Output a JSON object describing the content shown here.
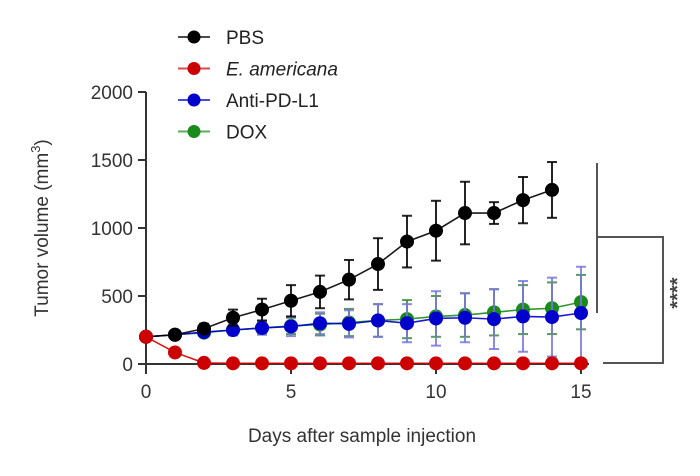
{
  "chart_data": {
    "type": "line",
    "title": "",
    "xlabel": "Days after sample injection",
    "ylabel": "Tumor volume (mm3)",
    "ylabel_parts": {
      "main": "Tumor volume (mm",
      "sup": "3",
      "close": ")"
    },
    "xlim": [
      0,
      15
    ],
    "ylim": [
      0,
      2000
    ],
    "xticks": [
      0,
      5,
      10,
      15
    ],
    "yticks": [
      0,
      500,
      1000,
      1500,
      2000
    ],
    "grid": false,
    "legend_position": "top-left",
    "x": [
      0,
      1,
      2,
      3,
      4,
      5,
      6,
      7,
      8,
      9,
      10,
      11,
      12,
      13,
      14,
      15
    ],
    "series": [
      {
        "name": "PBS",
        "italic_part": "",
        "color": "#000000",
        "x": [
          0,
          1,
          2,
          3,
          4,
          5,
          6,
          7,
          8,
          9,
          10,
          11,
          12,
          13,
          14
        ],
        "values": [
          200,
          215,
          260,
          340,
          400,
          465,
          530,
          620,
          735,
          900,
          980,
          1110,
          1110,
          1205,
          1280
        ],
        "errors": [
          10,
          15,
          35,
          60,
          80,
          115,
          120,
          145,
          190,
          190,
          220,
          230,
          80,
          170,
          205
        ]
      },
      {
        "name": "E. americana",
        "italic_part": "E. americana",
        "color": "#cc0000",
        "x": [
          0,
          1,
          2,
          3,
          4,
          5,
          6,
          7,
          8,
          9,
          10,
          11,
          12,
          13,
          14,
          15
        ],
        "values": [
          200,
          85,
          8,
          5,
          5,
          5,
          5,
          5,
          5,
          5,
          5,
          5,
          5,
          5,
          5,
          5
        ],
        "errors": [
          0,
          10,
          5,
          3,
          3,
          3,
          3,
          3,
          3,
          3,
          3,
          3,
          3,
          3,
          3,
          3
        ]
      },
      {
        "name": "Anti-PD-L1",
        "italic_part": "",
        "color": "#0000cc",
        "x": [
          0,
          1,
          2,
          3,
          4,
          5,
          6,
          7,
          8,
          9,
          10,
          11,
          12,
          13,
          14,
          15
        ],
        "values": [
          200,
          215,
          235,
          250,
          265,
          275,
          300,
          295,
          320,
          300,
          335,
          340,
          330,
          350,
          345,
          375
        ],
        "errors": [
          10,
          20,
          30,
          40,
          50,
          70,
          80,
          100,
          120,
          140,
          200,
          180,
          220,
          260,
          290,
          340
        ]
      },
      {
        "name": "DOX",
        "italic_part": "",
        "color": "#1a8a1a",
        "x": [
          0,
          1,
          2,
          3,
          4,
          5,
          6,
          7,
          8,
          9,
          10,
          11,
          12,
          13,
          14,
          15
        ],
        "values": [
          200,
          215,
          230,
          250,
          265,
          280,
          290,
          305,
          320,
          330,
          350,
          360,
          380,
          400,
          410,
          455
        ],
        "errors": [
          10,
          15,
          25,
          35,
          45,
          60,
          80,
          100,
          120,
          140,
          150,
          160,
          170,
          180,
          190,
          200
        ]
      }
    ],
    "annotations": [
      {
        "type": "significance-bracket",
        "text": "****",
        "between": [
          "PBS",
          "E. americana / Anti-PD-L1 / DOX"
        ]
      }
    ]
  },
  "axes": {
    "x_title": "Days after sample injection",
    "y_title_main": "Tumor volume (mm",
    "y_title_sup": "3",
    "y_title_close": ")",
    "x_tick_labels": [
      "0",
      "5",
      "10",
      "15"
    ],
    "y_tick_labels": [
      "0",
      "500",
      "1000",
      "1500",
      "2000"
    ]
  },
  "legend": {
    "items": [
      {
        "label": "PBS",
        "italic": false,
        "color": "#000000"
      },
      {
        "label": "E. americana",
        "italic": true,
        "color": "#cc0000"
      },
      {
        "label": "Anti-PD-L1",
        "italic": false,
        "color": "#0000cc"
      },
      {
        "label": "DOX",
        "italic": false,
        "color": "#1a8a1a"
      }
    ]
  },
  "significance": {
    "label": "****"
  }
}
